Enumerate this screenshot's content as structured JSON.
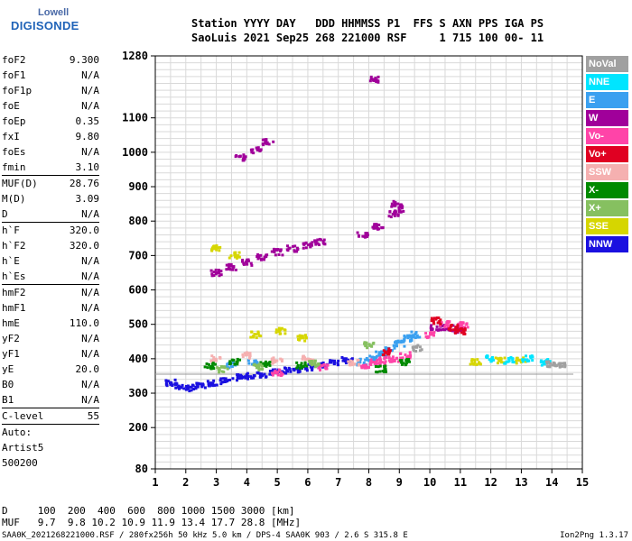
{
  "logo": {
    "line1": "Lowell",
    "line2": "DIGISONDE"
  },
  "header": {
    "line1": "Station YYYY DAY   DDD HHMMSS P1  FFS S AXN PPS IGA PS",
    "line2": "SaoLuis 2021 Sep25 268 221000 RSF     1 715 100 00- 11"
  },
  "params": [
    {
      "label": "foF2",
      "value": "9.300"
    },
    {
      "label": "foF1",
      "value": "N/A"
    },
    {
      "label": "foF1p",
      "value": "N/A"
    },
    {
      "label": "foE",
      "value": "N/A"
    },
    {
      "label": "foEp",
      "value": "0.35"
    },
    {
      "label": "fxI",
      "value": "9.80"
    },
    {
      "label": "foEs",
      "value": "N/A"
    },
    {
      "label": "fmin",
      "value": "3.10",
      "sep": true
    },
    {
      "label": "MUF(D)",
      "value": "28.76"
    },
    {
      "label": "M(D)",
      "value": "3.09"
    },
    {
      "label": "D",
      "value": "N/A",
      "sep": true
    },
    {
      "label": "h`F",
      "value": "320.0"
    },
    {
      "label": "h`F2",
      "value": "320.0"
    },
    {
      "label": "h`E",
      "value": "N/A"
    },
    {
      "label": "h`Es",
      "value": "N/A",
      "sep": true
    },
    {
      "label": "hmF2",
      "value": "N/A"
    },
    {
      "label": "hmF1",
      "value": "N/A"
    },
    {
      "label": "hmE",
      "value": "110.0"
    },
    {
      "label": "yF2",
      "value": "N/A"
    },
    {
      "label": "yF1",
      "value": "N/A"
    },
    {
      "label": "yE",
      "value": "20.0"
    },
    {
      "label": "B0",
      "value": "N/A"
    },
    {
      "label": "B1",
      "value": "N/A",
      "sep": true
    },
    {
      "label": "C-level",
      "value": "55",
      "sep": true
    },
    {
      "label": "Auto:",
      "value": ""
    },
    {
      "label": "Artist5",
      "value": ""
    },
    {
      "label": "500200",
      "value": ""
    }
  ],
  "legend": [
    {
      "label": "NoVal",
      "color": "#a0a0a0"
    },
    {
      "label": "NNE",
      "color": "#00e5ff"
    },
    {
      "label": "E",
      "color": "#3aa0f0"
    },
    {
      "label": "W",
      "color": "#a0009a"
    },
    {
      "label": "Vo-",
      "color": "#ff44a8"
    },
    {
      "label": "Vo+",
      "color": "#e00022"
    },
    {
      "label": "SSW",
      "color": "#f5b0b0"
    },
    {
      "label": "X-",
      "color": "#008a00"
    },
    {
      "label": "X+",
      "color": "#86c060"
    },
    {
      "label": "SSE",
      "color": "#d6d600"
    },
    {
      "label": "NNW",
      "color": "#1a10e0"
    }
  ],
  "dtable": {
    "row1": "D     100  200  400  600  800 1000 1500 3000 [km]",
    "row2": "MUF   9.7  9.8 10.2 10.9 11.9 13.4 17.7 28.8 [MHz]"
  },
  "footer": "SAA0K_2021268221000.RSF / 280fx256h 50 kHz 5.0 km / DPS-4 SAA0K 903 / 2.6 S 315.8 E",
  "version": "Ion2Png 1.3.17",
  "chart_data": {
    "type": "scatter",
    "title": "",
    "xlabel": "",
    "ylabel": "",
    "xlim": [
      1,
      15
    ],
    "ylim": [
      80,
      1280
    ],
    "xticks": [
      1,
      2,
      3,
      4,
      5,
      6,
      7,
      8,
      9,
      10,
      11,
      12,
      13,
      14,
      15
    ],
    "yticks": [
      80,
      200,
      300,
      400,
      500,
      600,
      700,
      800,
      900,
      1000,
      1100,
      1280
    ],
    "grid": true,
    "legend_placement": "right",
    "series": [
      {
        "name": "NNW",
        "color": "#1a10e0",
        "points": [
          [
            1.5,
            330
          ],
          [
            1.8,
            320
          ],
          [
            2.1,
            315
          ],
          [
            2.5,
            320
          ],
          [
            2.9,
            330
          ],
          [
            3.3,
            335
          ],
          [
            3.7,
            345
          ],
          [
            4.1,
            350
          ],
          [
            4.5,
            355
          ],
          [
            4.9,
            360
          ],
          [
            5.3,
            365
          ],
          [
            5.7,
            370
          ],
          [
            6.1,
            375
          ],
          [
            6.5,
            380
          ],
          [
            6.9,
            390
          ],
          [
            7.3,
            395
          ]
        ]
      },
      {
        "name": "E",
        "color": "#3aa0f0",
        "points": [
          [
            7.8,
            390
          ],
          [
            8.1,
            400
          ],
          [
            8.4,
            415
          ],
          [
            8.7,
            430
          ],
          [
            9.0,
            445
          ],
          [
            9.3,
            460
          ],
          [
            9.5,
            470
          ],
          [
            3.5,
            380
          ],
          [
            4.2,
            390
          ]
        ]
      },
      {
        "name": "W",
        "color": "#a0009a",
        "points": [
          [
            3.0,
            650
          ],
          [
            3.5,
            665
          ],
          [
            4.0,
            680
          ],
          [
            4.5,
            695
          ],
          [
            5.0,
            710
          ],
          [
            5.5,
            720
          ],
          [
            6.0,
            730
          ],
          [
            6.4,
            740
          ],
          [
            7.8,
            760
          ],
          [
            8.3,
            785
          ],
          [
            8.8,
            820
          ],
          [
            9.0,
            835
          ],
          [
            3.8,
            985
          ],
          [
            4.3,
            1005
          ],
          [
            4.7,
            1030
          ],
          [
            10.2,
            490
          ],
          [
            10.6,
            490
          ],
          [
            11.0,
            485
          ],
          [
            8.9,
            850
          ],
          [
            8.2,
            1210
          ]
        ]
      },
      {
        "name": "Vo-",
        "color": "#ff44a8",
        "points": [
          [
            7.9,
            380
          ],
          [
            8.2,
            390
          ],
          [
            8.5,
            395
          ],
          [
            8.8,
            400
          ],
          [
            9.2,
            410
          ],
          [
            10.0,
            470
          ],
          [
            10.5,
            500
          ],
          [
            11.1,
            500
          ],
          [
            5.0,
            360
          ],
          [
            6.5,
            375
          ]
        ]
      },
      {
        "name": "Vo+",
        "color": "#e00022",
        "points": [
          [
            10.2,
            510
          ],
          [
            10.8,
            490
          ],
          [
            11.0,
            480
          ],
          [
            8.6,
            420
          ]
        ]
      },
      {
        "name": "SSW",
        "color": "#f5b0b0",
        "points": [
          [
            3.0,
            400
          ],
          [
            4.0,
            410
          ],
          [
            5.0,
            395
          ],
          [
            6.0,
            400
          ],
          [
            7.5,
            390
          ]
        ]
      },
      {
        "name": "X-",
        "color": "#008a00",
        "points": [
          [
            2.8,
            380
          ],
          [
            3.6,
            390
          ],
          [
            4.6,
            385
          ],
          [
            5.8,
            380
          ],
          [
            8.4,
            370
          ],
          [
            9.2,
            390
          ]
        ]
      },
      {
        "name": "X+",
        "color": "#86c060",
        "points": [
          [
            3.2,
            370
          ],
          [
            4.4,
            375
          ],
          [
            6.2,
            385
          ],
          [
            8.0,
            440
          ]
        ]
      },
      {
        "name": "SSE",
        "color": "#d6d600",
        "points": [
          [
            3.0,
            720
          ],
          [
            3.6,
            700
          ],
          [
            4.3,
            470
          ],
          [
            5.1,
            480
          ],
          [
            5.8,
            460
          ],
          [
            11.5,
            390
          ],
          [
            12.3,
            395
          ],
          [
            13.0,
            395
          ]
        ]
      },
      {
        "name": "NNE",
        "color": "#00e5ff",
        "points": [
          [
            12.0,
            400
          ],
          [
            12.6,
            395
          ],
          [
            13.2,
            400
          ],
          [
            13.8,
            390
          ]
        ]
      },
      {
        "name": "NoVal",
        "color": "#a0a0a0",
        "points": [
          [
            14.0,
            385
          ],
          [
            14.3,
            380
          ],
          [
            9.6,
            430
          ]
        ]
      }
    ]
  }
}
